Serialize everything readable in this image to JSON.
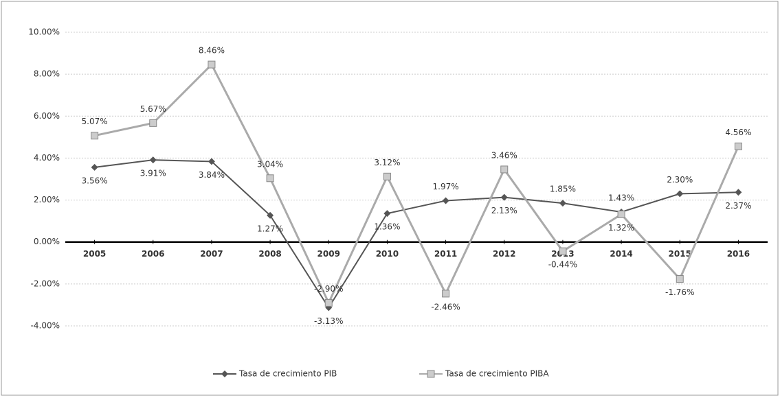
{
  "chart_data": {
    "type": "line",
    "categories": [
      "2005",
      "2006",
      "2007",
      "2008",
      "2009",
      "2010",
      "2011",
      "2012",
      "2013",
      "2014",
      "2015",
      "2016"
    ],
    "series": [
      {
        "name": "Tasa de crecimiento PIB",
        "color": "#555555",
        "values": [
          3.56,
          3.91,
          3.84,
          1.27,
          -3.13,
          1.36,
          1.97,
          2.13,
          1.85,
          1.43,
          2.3,
          2.37
        ],
        "value_labels": [
          "3.56%",
          "3.91%",
          "3.84%",
          "1.27%",
          "-3.13%",
          "1.36%",
          "1.97%",
          "2.13%",
          "1.85%",
          "1.43%",
          "2.30%",
          "2.37%"
        ]
      },
      {
        "name": "Tasa de crecimiento PIBA",
        "color": "#aaaaaa",
        "values": [
          5.07,
          5.67,
          8.46,
          3.04,
          -2.9,
          3.12,
          -2.46,
          3.46,
          -0.44,
          1.32,
          -1.76,
          4.56
        ],
        "value_labels": [
          "5.07%",
          "5.67%",
          "8.46%",
          "3.04%",
          "-2.90%",
          "3.12%",
          "-2.46%",
          "3.46%",
          "-0.44%",
          "1.32%",
          "-1.76%",
          "4.56%"
        ]
      }
    ],
    "ylim": [
      -4,
      10
    ],
    "yticks": [
      {
        "value": -4,
        "label": "-4.00%"
      },
      {
        "value": -2,
        "label": "-2.00%"
      },
      {
        "value": 0,
        "label": "0.00%"
      },
      {
        "value": 2,
        "label": "2.00%"
      },
      {
        "value": 4,
        "label": "4.00%"
      },
      {
        "value": 6,
        "label": "6.00%"
      },
      {
        "value": 8,
        "label": "8.00%"
      },
      {
        "value": 10,
        "label": "10.00%"
      }
    ],
    "grid": true,
    "legend": "bottom"
  }
}
